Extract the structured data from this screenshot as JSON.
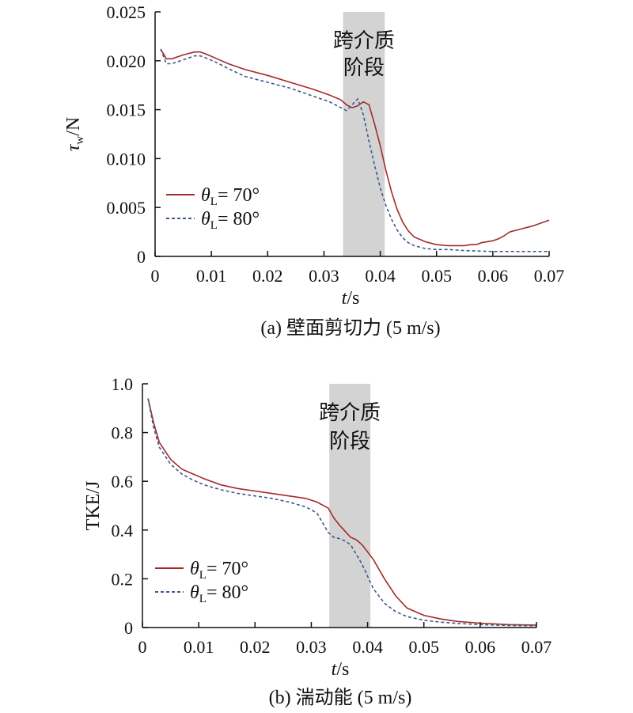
{
  "chart_data": [
    {
      "type": "line",
      "caption": "(a) 壁面剪切力 (5 m/s)",
      "xlabel": "t/s",
      "ylabel": "τ",
      "ylabel_sub": "w",
      "ylabel_unit": "/N",
      "xlim": [
        0,
        0.07
      ],
      "ylim": [
        0,
        0.025
      ],
      "x_ticks": [
        0,
        0.01,
        0.02,
        0.03,
        0.04,
        0.05,
        0.06,
        0.07
      ],
      "x_tick_labels": [
        "0",
        "0.01",
        "0.02",
        "0.03",
        "0.04",
        "0.05",
        "0.06",
        "0.07"
      ],
      "y_ticks": [
        0,
        0.005,
        0.01,
        0.015,
        0.02,
        0.025
      ],
      "y_tick_labels": [
        "0",
        "0.005",
        "0.010",
        "0.015",
        "0.020",
        "0.025"
      ],
      "grid": false,
      "legend_position": "lower-left",
      "shaded_band": {
        "x": [
          0.0334,
          0.0408
        ],
        "label_line1": "跨介质",
        "label_line2": "阶段",
        "color": "#d3d3d3"
      },
      "series": [
        {
          "legend_symbol": "θ",
          "legend_sub": "L",
          "legend_text": "= 70°",
          "color": "#a52a2a",
          "dash": "solid",
          "x": [
            0.001,
            0.002,
            0.003,
            0.005,
            0.007,
            0.008,
            0.009,
            0.011,
            0.013,
            0.016,
            0.02,
            0.024,
            0.028,
            0.031,
            0.033,
            0.034,
            0.035,
            0.036,
            0.037,
            0.038,
            0.039,
            0.04,
            0.041,
            0.042,
            0.043,
            0.044,
            0.045,
            0.046,
            0.048,
            0.05,
            0.052,
            0.054,
            0.055,
            0.056,
            0.057,
            0.058,
            0.06,
            0.061,
            0.062,
            0.063,
            0.065,
            0.067,
            0.069,
            0.07
          ],
          "y": [
            0.0212,
            0.0202,
            0.0202,
            0.0206,
            0.0209,
            0.0209,
            0.0207,
            0.0202,
            0.0197,
            0.0191,
            0.0185,
            0.0178,
            0.0171,
            0.0165,
            0.016,
            0.0155,
            0.0152,
            0.0154,
            0.0158,
            0.0155,
            0.0135,
            0.0113,
            0.0088,
            0.0066,
            0.0048,
            0.0035,
            0.0026,
            0.002,
            0.0015,
            0.0012,
            0.0011,
            0.0011,
            0.0011,
            0.0012,
            0.0012,
            0.0014,
            0.0016,
            0.0018,
            0.0021,
            0.0025,
            0.0028,
            0.0031,
            0.0035,
            0.0037
          ]
        },
        {
          "legend_symbol": "θ",
          "legend_sub": "L",
          "legend_text": "= 80°",
          "color": "#3c5a8c",
          "dash": "dashed",
          "x": [
            0.001,
            0.002,
            0.003,
            0.005,
            0.007,
            0.008,
            0.009,
            0.011,
            0.013,
            0.016,
            0.02,
            0.024,
            0.028,
            0.031,
            0.033,
            0.034,
            0.035,
            0.036,
            0.037,
            0.038,
            0.039,
            0.04,
            0.041,
            0.042,
            0.043,
            0.044,
            0.045,
            0.046,
            0.048,
            0.05,
            0.052,
            0.055,
            0.06,
            0.065,
            0.07
          ],
          "y": [
            0.0212,
            0.0197,
            0.0197,
            0.0201,
            0.0205,
            0.0205,
            0.0203,
            0.0198,
            0.0192,
            0.0184,
            0.0178,
            0.0172,
            0.0164,
            0.0158,
            0.0152,
            0.0149,
            0.0155,
            0.0161,
            0.0145,
            0.0118,
            0.0093,
            0.007,
            0.0052,
            0.0038,
            0.0027,
            0.0019,
            0.0014,
            0.0011,
            0.0008,
            0.0007,
            0.0007,
            0.0006,
            0.0005,
            0.0005,
            0.0005
          ]
        }
      ]
    },
    {
      "type": "line",
      "caption": "(b) 湍动能 (5 m/s)",
      "xlabel": "t/s",
      "ylabel": "TKE/J",
      "xlim": [
        0,
        0.07
      ],
      "ylim": [
        0,
        1.0
      ],
      "x_ticks": [
        0,
        0.01,
        0.02,
        0.03,
        0.04,
        0.05,
        0.06,
        0.07
      ],
      "x_tick_labels": [
        "0",
        "0.01",
        "0.02",
        "0.03",
        "0.04",
        "0.05",
        "0.06",
        "0.07"
      ],
      "y_ticks": [
        0,
        0.2,
        0.4,
        0.6,
        0.8,
        1.0
      ],
      "y_tick_labels": [
        "0",
        "0.2",
        "0.4",
        "0.6",
        "0.8",
        "1.0"
      ],
      "grid": false,
      "legend_position": "lower-left",
      "shaded_band": {
        "x": [
          0.0332,
          0.0405
        ],
        "label_line1": "跨介质",
        "label_line2": "阶段",
        "color": "#d3d3d3"
      },
      "series": [
        {
          "legend_symbol": "θ",
          "legend_sub": "L",
          "legend_text": "= 70°",
          "color": "#a52a2a",
          "dash": "solid",
          "x": [
            0.001,
            0.002,
            0.003,
            0.005,
            0.007,
            0.009,
            0.011,
            0.014,
            0.017,
            0.02,
            0.023,
            0.026,
            0.029,
            0.031,
            0.033,
            0.034,
            0.035,
            0.036,
            0.037,
            0.038,
            0.039,
            0.04,
            0.041,
            0.043,
            0.045,
            0.047,
            0.05,
            0.053,
            0.056,
            0.06,
            0.065,
            0.07
          ],
          "y": [
            0.94,
            0.84,
            0.76,
            0.69,
            0.65,
            0.63,
            0.61,
            0.585,
            0.57,
            0.56,
            0.55,
            0.54,
            0.53,
            0.515,
            0.49,
            0.45,
            0.42,
            0.395,
            0.37,
            0.36,
            0.34,
            0.31,
            0.28,
            0.2,
            0.13,
            0.08,
            0.05,
            0.035,
            0.025,
            0.018,
            0.012,
            0.01
          ]
        },
        {
          "legend_symbol": "θ",
          "legend_sub": "L",
          "legend_text": "= 80°",
          "color": "#3c5a8c",
          "dash": "dashed",
          "x": [
            0.001,
            0.002,
            0.003,
            0.005,
            0.007,
            0.009,
            0.011,
            0.014,
            0.017,
            0.02,
            0.023,
            0.026,
            0.029,
            0.031,
            0.032,
            0.033,
            0.034,
            0.035,
            0.036,
            0.037,
            0.038,
            0.039,
            0.04,
            0.041,
            0.043,
            0.045,
            0.047,
            0.05,
            0.053,
            0.056,
            0.06,
            0.065,
            0.07
          ],
          "y": [
            0.94,
            0.82,
            0.74,
            0.67,
            0.63,
            0.605,
            0.585,
            0.565,
            0.55,
            0.54,
            0.53,
            0.515,
            0.495,
            0.47,
            0.43,
            0.39,
            0.37,
            0.365,
            0.355,
            0.34,
            0.3,
            0.26,
            0.21,
            0.16,
            0.1,
            0.065,
            0.045,
            0.03,
            0.022,
            0.017,
            0.012,
            0.008,
            0.007
          ]
        }
      ]
    }
  ]
}
